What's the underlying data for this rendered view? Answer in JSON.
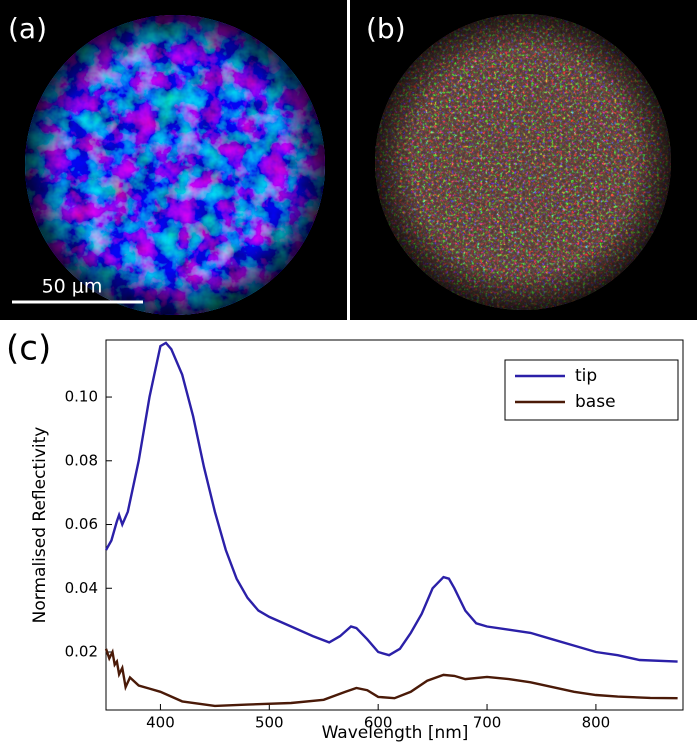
{
  "panels": [
    {
      "label": "(a)"
    },
    {
      "label": "(b)"
    }
  ],
  "scale_bar": "50 μm",
  "chart_label": "(c)",
  "chart_data": {
    "type": "line",
    "x_label": "Wavelength [nm]",
    "y_label": "Normalised Reflectivity",
    "xlim": [
      350,
      880
    ],
    "xticks": [
      400,
      500,
      600,
      700,
      800
    ],
    "ylim": [
      0.0018,
      0.1179
    ],
    "yticks": [
      0.02,
      0.04,
      0.06,
      0.08,
      0.1
    ],
    "ytick_labels": [
      "0.02",
      "0.04",
      "0.06",
      "0.08",
      "0.10"
    ],
    "legend": "top-right",
    "series": [
      {
        "name": "tip",
        "color": "#2b20a8",
        "x": [
          350,
          355,
          360,
          362,
          365,
          370,
          380,
          390,
          400,
          405,
          410,
          420,
          430,
          440,
          450,
          460,
          470,
          480,
          490,
          500,
          520,
          540,
          555,
          565,
          575,
          580,
          590,
          600,
          610,
          620,
          630,
          640,
          650,
          660,
          665,
          670,
          680,
          690,
          700,
          720,
          740,
          760,
          780,
          800,
          820,
          840,
          875
        ],
        "values": [
          0.052,
          0.055,
          0.061,
          0.063,
          0.06,
          0.064,
          0.08,
          0.1,
          0.116,
          0.117,
          0.115,
          0.107,
          0.094,
          0.078,
          0.064,
          0.052,
          0.043,
          0.037,
          0.033,
          0.031,
          0.028,
          0.025,
          0.023,
          0.025,
          0.028,
          0.0275,
          0.024,
          0.02,
          0.019,
          0.021,
          0.026,
          0.032,
          0.04,
          0.0435,
          0.043,
          0.04,
          0.033,
          0.029,
          0.028,
          0.027,
          0.026,
          0.024,
          0.022,
          0.02,
          0.019,
          0.0175,
          0.017
        ]
      },
      {
        "name": "base",
        "color": "#4a1a08",
        "x": [
          350,
          353,
          356,
          358,
          360,
          362,
          365,
          368,
          372,
          380,
          390,
          400,
          420,
          450,
          480,
          520,
          550,
          570,
          580,
          590,
          600,
          615,
          630,
          645,
          660,
          670,
          680,
          700,
          720,
          740,
          760,
          780,
          800,
          820,
          850,
          875
        ],
        "values": [
          0.021,
          0.018,
          0.02,
          0.016,
          0.017,
          0.013,
          0.015,
          0.009,
          0.012,
          0.0095,
          0.0085,
          0.0075,
          0.0045,
          0.0031,
          0.0035,
          0.004,
          0.005,
          0.0075,
          0.0087,
          0.008,
          0.0059,
          0.0055,
          0.0075,
          0.011,
          0.0128,
          0.0125,
          0.0115,
          0.0122,
          0.0115,
          0.0105,
          0.009,
          0.0075,
          0.0065,
          0.006,
          0.0056,
          0.0055
        ]
      }
    ]
  }
}
